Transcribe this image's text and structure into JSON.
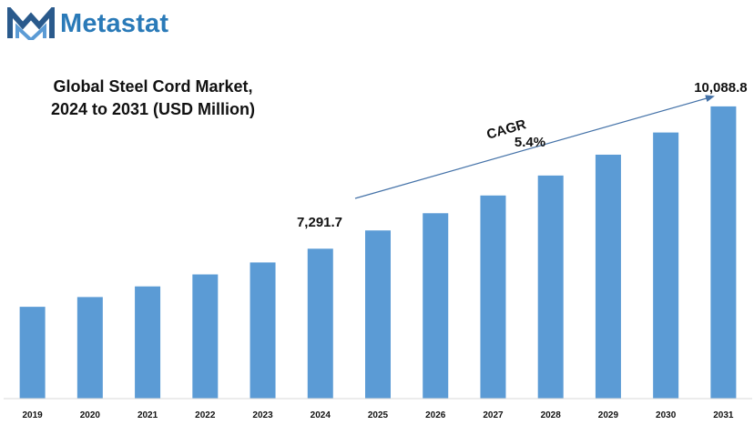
{
  "brand": {
    "name": "Metastat",
    "mark_color": "#2a5a8c",
    "text_color": "#2a7ab8"
  },
  "chart_data": {
    "type": "bar",
    "title_lines": [
      "Global Steel Cord Market,",
      "2024 to 2031 (USD Million)"
    ],
    "categories": [
      "2019",
      "2020",
      "2021",
      "2022",
      "2023",
      "2024",
      "2025",
      "2026",
      "2027",
      "2028",
      "2029",
      "2030",
      "2031"
    ],
    "values": [
      5570,
      5790,
      6030,
      6300,
      6570,
      6880,
      7291.7,
      7680,
      8080,
      8530,
      9000,
      9500,
      10088.8
    ],
    "data_labels": [
      {
        "category": "2025",
        "text": "7,291.7"
      },
      {
        "category": "2031",
        "text": "10,088.8"
      }
    ],
    "annotation": {
      "label": "CAGR",
      "value": "5.4%"
    },
    "ylim": [
      3500,
      10600
    ],
    "bar_color": "#5b9bd5",
    "grid": false,
    "legend": "none",
    "xlabel": "",
    "ylabel": ""
  }
}
